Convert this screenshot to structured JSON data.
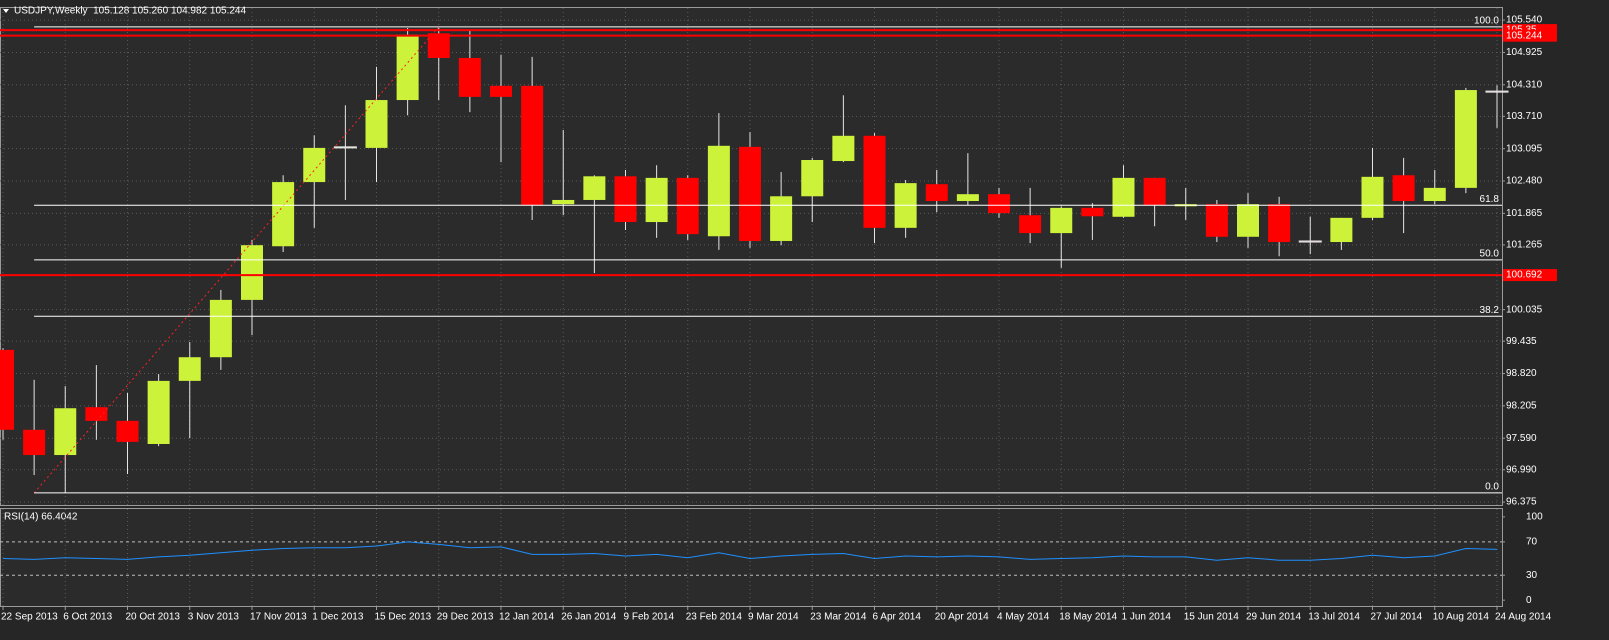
{
  "chart_data": [
    {
      "type": "candlestick",
      "title": "USDJPY,Weekly  105.128 105.260 104.982 105.244",
      "categories": [
        "22 Sep 2013",
        null,
        "6 Oct 2013",
        null,
        "20 Oct 2013",
        null,
        "3 Nov 2013",
        null,
        "17 Nov 2013",
        null,
        "1 Dec 2013",
        null,
        "15 Dec 2013",
        null,
        "29 Dec 2013",
        null,
        "12 Jan 2014",
        null,
        "26 Jan 2014",
        null,
        "9 Feb 2014",
        null,
        "23 Feb 2014",
        null,
        "9 Mar 2014",
        null,
        "23 Mar 2014",
        null,
        "6 Apr 2014",
        null,
        "20 Apr 2014",
        null,
        "4 May 2014",
        null,
        "18 May 2014",
        null,
        "1 Jun 2014",
        null,
        "15 Jun 2014",
        null,
        "29 Jun 2014",
        null,
        "13 Jul 2014",
        null,
        "27 Jul 2014",
        null,
        "10 Aug 2014",
        null,
        "24 Aug 2014"
      ],
      "open": [
        99.27,
        97.75,
        97.27,
        98.18,
        97.92,
        97.48,
        98.68,
        99.13,
        100.22,
        101.24,
        102.46,
        103.11,
        103.11,
        104.02,
        105.29,
        104.82,
        104.29,
        104.29,
        102.04,
        102.12,
        102.57,
        101.7,
        102.54,
        101.43,
        103.13,
        101.34,
        102.19,
        102.86,
        103.34,
        101.59,
        102.42,
        102.1,
        102.23,
        101.83,
        101.49,
        101.97,
        101.8,
        102.54,
        102.0,
        102.04,
        101.42,
        102.04,
        101.34,
        101.32,
        101.78,
        102.59,
        102.1,
        102.35,
        104.19
      ],
      "high": [
        99.3,
        98.7,
        98.58,
        98.98,
        98.45,
        98.81,
        99.42,
        100.41,
        101.36,
        102.59,
        103.35,
        103.92,
        104.65,
        105.39,
        105.39,
        105.35,
        104.88,
        104.84,
        103.45,
        102.59,
        102.69,
        102.78,
        102.59,
        103.77,
        103.41,
        102.65,
        102.92,
        104.11,
        103.39,
        102.5,
        102.69,
        103.01,
        102.35,
        102.35,
        102.0,
        102.06,
        102.78,
        102.54,
        102.35,
        102.12,
        102.25,
        102.18,
        101.8,
        101.78,
        103.11,
        102.92,
        102.69,
        104.25,
        104.3
      ],
      "low": [
        97.56,
        96.89,
        96.55,
        97.56,
        96.91,
        97.44,
        97.59,
        98.89,
        99.55,
        101.13,
        101.59,
        102.12,
        102.46,
        103.73,
        104.02,
        103.79,
        102.84,
        101.74,
        101.83,
        100.73,
        101.55,
        101.4,
        101.36,
        101.17,
        101.21,
        101.26,
        101.7,
        102.84,
        101.3,
        101.4,
        101.89,
        102.02,
        101.78,
        101.3,
        100.83,
        101.36,
        101.78,
        101.62,
        101.74,
        101.32,
        101.21,
        101.05,
        101.09,
        101.17,
        101.74,
        101.49,
        102.04,
        102.25,
        103.49
      ],
      "close": [
        97.75,
        97.27,
        98.16,
        97.92,
        97.52,
        98.68,
        99.13,
        100.22,
        101.26,
        102.46,
        103.11,
        103.13,
        104.02,
        105.26,
        104.82,
        104.08,
        104.08,
        102.02,
        102.12,
        102.57,
        101.7,
        102.54,
        101.47,
        103.15,
        101.34,
        102.19,
        102.88,
        103.34,
        101.59,
        102.44,
        102.1,
        102.23,
        101.87,
        101.49,
        101.97,
        101.81,
        102.54,
        102.02,
        102.04,
        101.42,
        102.04,
        101.32,
        101.32,
        101.78,
        102.56,
        102.1,
        102.35,
        104.21,
        104.17
      ],
      "up_color": "#ccf23a",
      "down_color": "#ff0000",
      "wick_color": "#e6e6e6",
      "ylim": [
        96.32,
        105.77
      ],
      "yticks": [
        {
          "value": 105.54,
          "label": "105.540"
        },
        104.925,
        {
          "value": 104.31,
          "label": "104.310"
        },
        {
          "value": 103.71,
          "label": "103.710"
        },
        103.095,
        {
          "value": 102.48,
          "label": "102.480"
        },
        101.865,
        101.265,
        100.035,
        99.435,
        {
          "value": 98.82,
          "label": "98.820"
        },
        98.205,
        {
          "value": 97.59,
          "label": "97.590"
        },
        {
          "value": 96.99,
          "label": "96.990"
        },
        96.375
      ],
      "grid": true,
      "fib_levels": [
        {
          "label": "100.0",
          "price": 105.41
        },
        {
          "label": "61.8",
          "price": 102.02
        },
        {
          "label": "50.0",
          "price": 100.98
        },
        {
          "label": "38.2",
          "price": 99.91
        },
        {
          "label": "0.0",
          "price": 96.55
        }
      ],
      "fib_color": "#ffffff",
      "hlines": [
        105.35,
        105.244,
        100.692
      ],
      "hline_color": "#ff0000"
    },
    {
      "type": "line",
      "title": "RSI(14) 66.4042",
      "values": [
        50,
        49,
        51,
        50,
        49,
        52,
        54,
        57,
        60,
        62,
        63,
        63,
        65,
        70,
        67,
        63,
        64,
        55,
        55,
        56,
        53,
        55,
        51,
        57,
        50,
        53,
        55,
        56,
        50,
        53,
        52,
        53,
        52,
        49,
        50,
        51,
        53,
        52,
        52,
        48,
        51,
        48,
        48,
        50,
        54,
        51,
        53,
        62,
        61
      ],
      "color": "#1e90ff",
      "ylim": [
        -7,
        109.5
      ],
      "yticks": [
        100,
        70,
        30,
        0
      ]
    }
  ]
}
